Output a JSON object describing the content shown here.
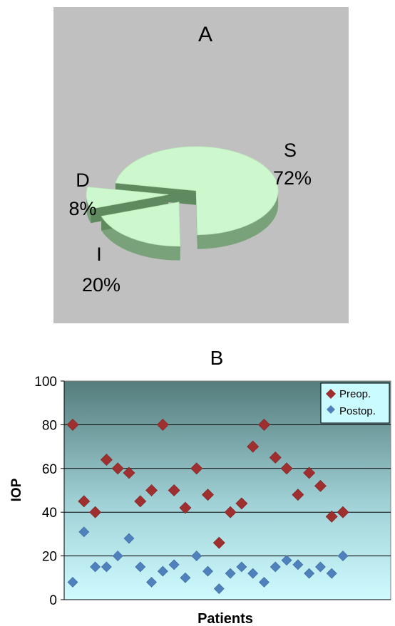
{
  "chart_data": [
    {
      "type": "pie",
      "title": "A",
      "style": "3d-exploded",
      "slices": [
        {
          "label": "S",
          "value": 72,
          "pct_label": "72%"
        },
        {
          "label": "I",
          "value": 20,
          "pct_label": "20%"
        },
        {
          "label": "D",
          "value": 8,
          "pct_label": "8%"
        }
      ],
      "colors": {
        "slice_top": "#cdf7cd",
        "slice_side": "#7aa27a",
        "background": "#c0c0c0"
      }
    },
    {
      "type": "scatter",
      "title": "B",
      "xlabel": "Patients",
      "ylabel": "IOP",
      "ylim": [
        0,
        100
      ],
      "yticks": [
        0,
        20,
        40,
        60,
        80,
        100
      ],
      "grid": true,
      "legend_position": "top-right",
      "x": [
        1,
        2,
        3,
        4,
        5,
        6,
        7,
        8,
        9,
        10,
        11,
        12,
        13,
        14,
        15,
        16,
        17,
        18,
        19,
        20,
        21,
        22,
        23,
        24,
        25
      ],
      "series": [
        {
          "name": "Preop.",
          "color": "#a03030",
          "values": [
            80,
            45,
            40,
            64,
            60,
            58,
            45,
            50,
            80,
            50,
            42,
            60,
            48,
            26,
            40,
            44,
            70,
            80,
            65,
            60,
            48,
            58,
            52,
            38,
            40
          ]
        },
        {
          "name": "Postop.",
          "color": "#4f81bd",
          "values": [
            8,
            31,
            15,
            15,
            20,
            28,
            15,
            8,
            13,
            16,
            10,
            20,
            13,
            5,
            12,
            15,
            12,
            8,
            15,
            18,
            16,
            12,
            15,
            12,
            20
          ]
        }
      ]
    }
  ]
}
